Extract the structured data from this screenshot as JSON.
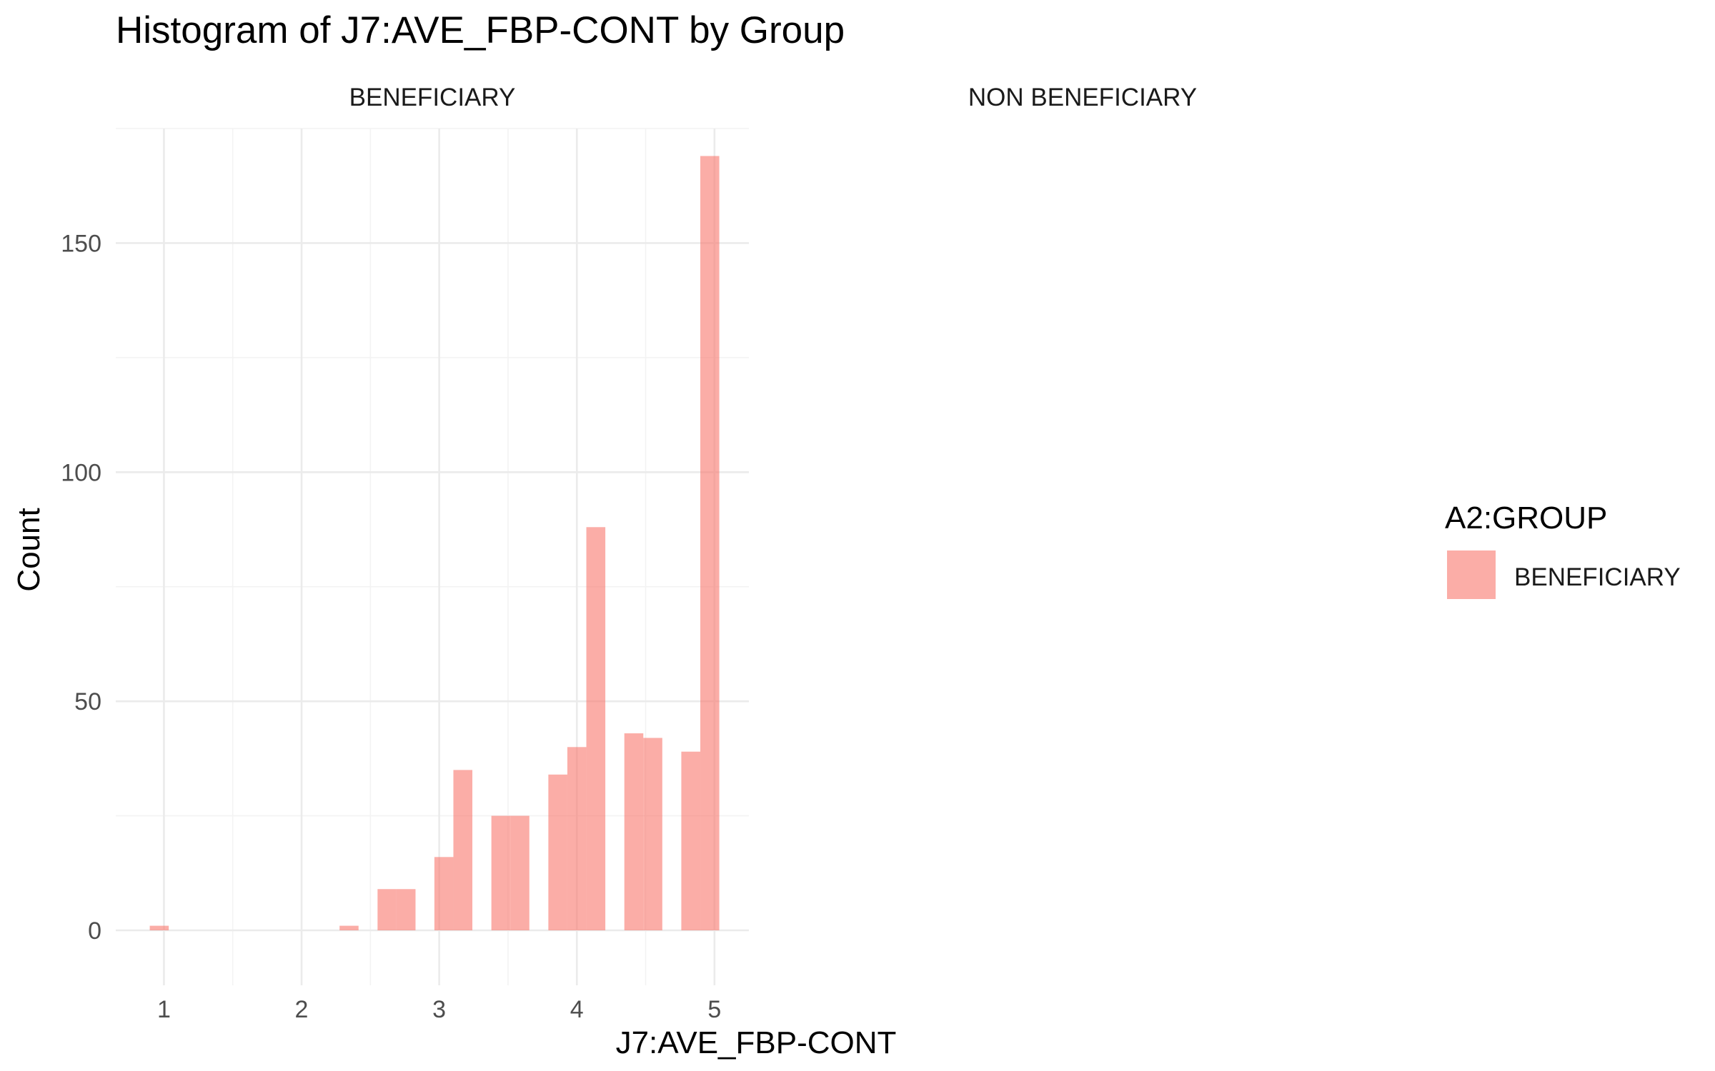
{
  "chart_data": {
    "type": "bar",
    "title": "Histogram of J7:AVE_FBP-CONT by Group",
    "xlabel": "J7:AVE_FBP-CONT",
    "ylabel": "Count",
    "panels": [
      "BENEFICIARY",
      "NON BENEFICIARY"
    ],
    "xlim": [
      0.65,
      5.25
    ],
    "ylim": [
      -12,
      175
    ],
    "x_ticks": [
      1,
      2,
      3,
      4,
      5
    ],
    "y_ticks": [
      0,
      50,
      100,
      150
    ],
    "x_minor": [
      1.5,
      2.5,
      3.5,
      4.5
    ],
    "y_minor": [
      25,
      75,
      125,
      175
    ],
    "bin_width": 0.1379,
    "grid": true,
    "legend": {
      "title": "A2:GROUP",
      "position": "right",
      "entries": [
        {
          "label": "BENEFICIARY",
          "color": "#F8766D",
          "alpha": 0.6
        }
      ]
    },
    "series": [
      {
        "name": "BENEFICIARY",
        "panel": "BENEFICIARY",
        "color": "#F8766D",
        "bins": [
          {
            "x": 0.966,
            "count": 1
          },
          {
            "x": 1.103,
            "count": 0
          },
          {
            "x": 1.241,
            "count": 0
          },
          {
            "x": 1.379,
            "count": 0
          },
          {
            "x": 1.517,
            "count": 0
          },
          {
            "x": 1.655,
            "count": 0
          },
          {
            "x": 1.793,
            "count": 0
          },
          {
            "x": 1.931,
            "count": 0
          },
          {
            "x": 2.069,
            "count": 0
          },
          {
            "x": 2.207,
            "count": 0
          },
          {
            "x": 2.345,
            "count": 1
          },
          {
            "x": 2.483,
            "count": 0
          },
          {
            "x": 2.621,
            "count": 9
          },
          {
            "x": 2.759,
            "count": 9
          },
          {
            "x": 2.897,
            "count": 0
          },
          {
            "x": 3.034,
            "count": 16
          },
          {
            "x": 3.172,
            "count": 35
          },
          {
            "x": 3.31,
            "count": 0
          },
          {
            "x": 3.448,
            "count": 25
          },
          {
            "x": 3.586,
            "count": 25
          },
          {
            "x": 3.724,
            "count": 0
          },
          {
            "x": 3.862,
            "count": 34
          },
          {
            "x": 4.0,
            "count": 40
          },
          {
            "x": 4.138,
            "count": 88
          },
          {
            "x": 4.276,
            "count": 0
          },
          {
            "x": 4.414,
            "count": 43
          },
          {
            "x": 4.552,
            "count": 42
          },
          {
            "x": 4.69,
            "count": 0
          },
          {
            "x": 4.828,
            "count": 39
          },
          {
            "x": 4.966,
            "count": 169
          }
        ]
      }
    ]
  }
}
